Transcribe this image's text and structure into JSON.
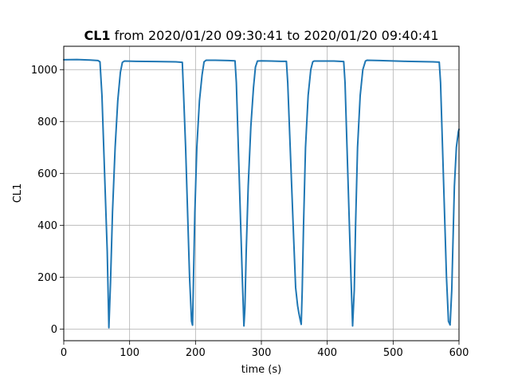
{
  "chart_data": {
    "type": "line",
    "title_bold": "CL1",
    "title_rest": " from 2020/01/20 09:30:41 to 2020/01/20 09:40:41",
    "xlabel": "time (s)",
    "ylabel": "CL1",
    "xlim": [
      0,
      600
    ],
    "ylim": [
      -45,
      1090
    ],
    "xticks": [
      0,
      100,
      200,
      300,
      400,
      500,
      600
    ],
    "yticks": [
      0,
      200,
      400,
      600,
      800,
      1000
    ],
    "grid": true,
    "line_color": "#1f77b4",
    "series": [
      {
        "x": [
          0,
          20,
          40,
          52,
          55,
          58,
          62,
          66,
          68.5,
          71,
          74,
          78,
          82,
          86,
          89,
          92,
          110,
          140,
          170,
          180,
          182,
          185,
          188,
          191,
          194,
          195.5,
          197,
          199,
          202,
          206,
          210,
          213,
          216,
          230,
          250,
          260,
          262,
          265,
          268,
          271,
          273.5,
          275,
          277,
          280,
          284,
          288,
          291,
          294,
          300,
          315,
          330,
          338,
          340,
          343,
          346,
          349,
          352,
          355,
          357,
          359,
          360.5,
          362,
          364,
          367,
          371,
          375,
          378,
          380,
          390,
          410,
          425,
          427,
          430,
          433,
          436,
          438.5,
          441,
          443,
          446,
          450,
          454,
          458,
          460,
          480,
          520,
          560,
          570,
          572,
          575,
          578,
          581,
          584,
          586.5,
          589,
          591,
          593,
          596,
          599,
          600
        ],
        "y": [
          1038,
          1039,
          1037,
          1035,
          1030,
          900,
          600,
          300,
          5,
          180,
          450,
          700,
          880,
          990,
          1028,
          1033,
          1032,
          1031,
          1030,
          1028,
          900,
          700,
          450,
          200,
          30,
          15,
          200,
          450,
          700,
          880,
          980,
          1030,
          1036,
          1036,
          1035,
          1034,
          950,
          700,
          450,
          200,
          12,
          80,
          300,
          550,
          780,
          930,
          1010,
          1033,
          1034,
          1033,
          1032,
          1032,
          950,
          750,
          550,
          350,
          160,
          90,
          60,
          35,
          18,
          150,
          400,
          700,
          900,
          1000,
          1030,
          1033,
          1033,
          1033,
          1031,
          950,
          700,
          450,
          200,
          12,
          150,
          400,
          700,
          900,
          1000,
          1033,
          1036,
          1035,
          1032,
          1030,
          1029,
          950,
          700,
          450,
          200,
          30,
          16,
          150,
          350,
          550,
          700,
          760,
          770
        ]
      }
    ]
  }
}
